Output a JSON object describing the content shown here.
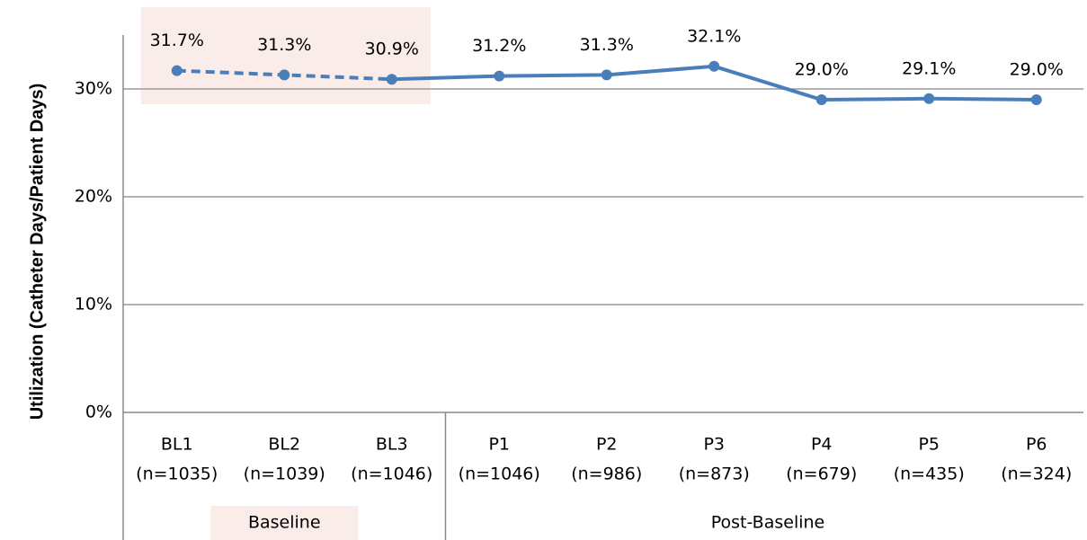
{
  "chart_data": {
    "type": "line",
    "y_label": "Utilization (Catheter Days/Patient Days)",
    "categories": [
      "BL1",
      "BL2",
      "BL3",
      "P1",
      "P2",
      "P3",
      "P4",
      "P5",
      "P6"
    ],
    "sample_sizes": [
      "(n=1035)",
      "(n=1039)",
      "(n=1046)",
      "(n=1046)",
      "(n=986)",
      "(n=873)",
      "(n=679)",
      "(n=435)",
      "(n=324)"
    ],
    "groups": [
      {
        "name": "Baseline",
        "categories": [
          "BL1",
          "BL2",
          "BL3"
        ],
        "line_style": "dashed",
        "highlight": "#f9ece9"
      },
      {
        "name": "Post-Baseline",
        "categories": [
          "P1",
          "P2",
          "P3",
          "P4",
          "P5",
          "P6"
        ],
        "line_style": "solid"
      }
    ],
    "series": [
      {
        "name": "Utilization",
        "color": "#4a7ebb",
        "values": [
          31.7,
          31.3,
          30.9,
          31.2,
          31.3,
          32.1,
          29.0,
          29.1,
          29.0
        ],
        "value_labels": [
          "31.7%",
          "31.3%",
          "30.9%",
          "31.2%",
          "31.3%",
          "32.1%",
          "29.0%",
          "29.1%",
          "29.0%"
        ]
      }
    ],
    "ylim": [
      0,
      35
    ],
    "yticks": [
      {
        "value": 0,
        "label": "0%"
      },
      {
        "value": 10,
        "label": "10%"
      },
      {
        "value": 20,
        "label": "20%"
      },
      {
        "value": 30,
        "label": "30%"
      }
    ],
    "grid": true
  }
}
